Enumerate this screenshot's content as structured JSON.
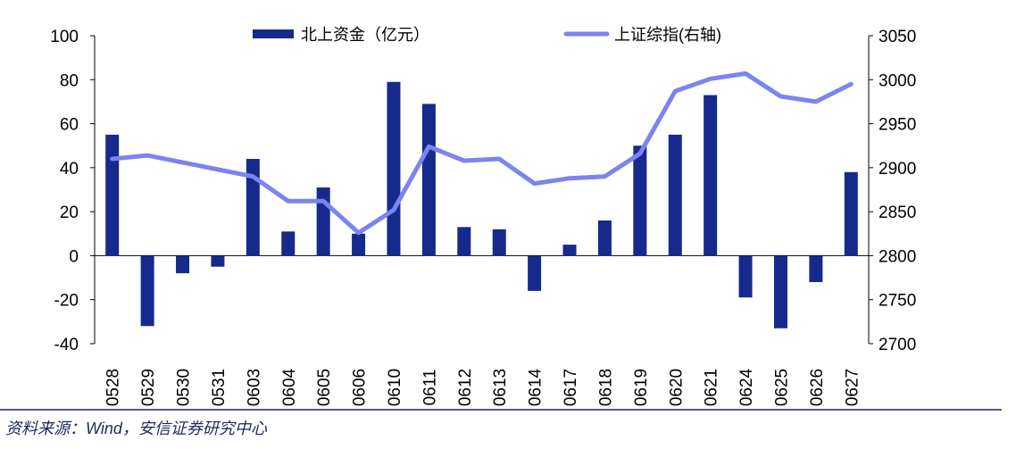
{
  "chart_data": {
    "type": "bar",
    "categories": [
      "0528",
      "0529",
      "0530",
      "0531",
      "0603",
      "0604",
      "0605",
      "0606",
      "0610",
      "0611",
      "0612",
      "0613",
      "0614",
      "0617",
      "0618",
      "0619",
      "0620",
      "0621",
      "0624",
      "0625",
      "0626",
      "0627"
    ],
    "series": [
      {
        "name": "北上资金（亿元）",
        "type": "bar",
        "axis": "left",
        "color": "#152a8c",
        "values": [
          55,
          -32,
          -8,
          -5,
          44,
          11,
          31,
          10,
          79,
          69,
          13,
          12,
          -16,
          5,
          16,
          50,
          55,
          73,
          -19,
          -33,
          -12,
          38
        ]
      },
      {
        "name": "上证综指(右轴)",
        "type": "line",
        "axis": "right",
        "color": "#7b84f0",
        "values": [
          2910,
          2914,
          2906,
          2898,
          2890,
          2862,
          2862,
          2826,
          2852,
          2924,
          2908,
          2910,
          2882,
          2888,
          2890,
          2916,
          2987,
          3001,
          3007,
          2981,
          2975,
          2995
        ]
      }
    ],
    "y_left": {
      "min": -40,
      "max": 100,
      "ticks": [
        "100",
        "80",
        "60",
        "40",
        "20",
        "0",
        "-20",
        "-40"
      ]
    },
    "y_right": {
      "min": 2700,
      "max": 3050,
      "ticks": [
        "3050",
        "3000",
        "2950",
        "2900",
        "2850",
        "2800",
        "2750",
        "2700"
      ]
    },
    "legend_position": "top",
    "grid": false
  },
  "source": "资料来源：Wind，安信证券研究中心",
  "colors": {
    "bar": "#152a8c",
    "line": "#7b84f0",
    "source_rule": "#1f2a5a"
  }
}
